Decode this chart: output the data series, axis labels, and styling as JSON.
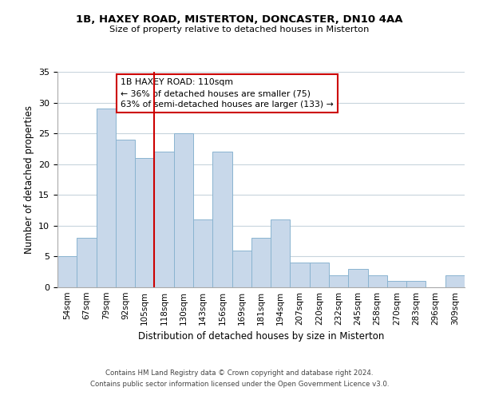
{
  "title_line1": "1B, HAXEY ROAD, MISTERTON, DONCASTER, DN10 4AA",
  "title_line2": "Size of property relative to detached houses in Misterton",
  "xlabel": "Distribution of detached houses by size in Misterton",
  "ylabel": "Number of detached properties",
  "bar_labels": [
    "54sqm",
    "67sqm",
    "79sqm",
    "92sqm",
    "105sqm",
    "118sqm",
    "130sqm",
    "143sqm",
    "156sqm",
    "169sqm",
    "181sqm",
    "194sqm",
    "207sqm",
    "220sqm",
    "232sqm",
    "245sqm",
    "258sqm",
    "270sqm",
    "283sqm",
    "296sqm",
    "309sqm"
  ],
  "bar_values": [
    5,
    8,
    29,
    24,
    21,
    22,
    25,
    11,
    22,
    6,
    8,
    11,
    4,
    4,
    2,
    3,
    2,
    1,
    1,
    0,
    2
  ],
  "bar_color": "#c8d8ea",
  "bar_edge_color": "#8ab4d0",
  "vline_x": 4.5,
  "vline_color": "#cc0000",
  "annotation_title": "1B HAXEY ROAD: 110sqm",
  "annotation_line2": "← 36% of detached houses are smaller (75)",
  "annotation_line3": "63% of semi-detached houses are larger (133) →",
  "annotation_box_color": "#ffffff",
  "annotation_box_edge": "#cc0000",
  "ylim": [
    0,
    35
  ],
  "yticks": [
    0,
    5,
    10,
    15,
    20,
    25,
    30,
    35
  ],
  "footer_line1": "Contains HM Land Registry data © Crown copyright and database right 2024.",
  "footer_line2": "Contains public sector information licensed under the Open Government Licence v3.0.",
  "background_color": "#ffffff",
  "grid_color": "#c8d4dc"
}
